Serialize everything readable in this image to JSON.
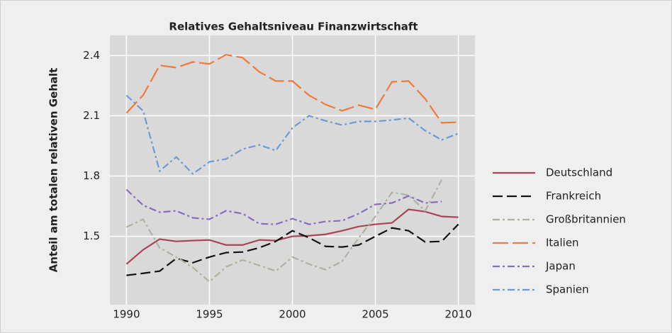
{
  "chart_data": {
    "type": "line",
    "title": "Relatives Gehaltsniveau Finanzwirtschaft",
    "y_label": "Anteil am totalen relativen Gehalt",
    "x": [
      1990,
      1991,
      1992,
      1993,
      1994,
      1995,
      1996,
      1997,
      1998,
      1999,
      2000,
      2001,
      2002,
      2003,
      2004,
      2005,
      2006,
      2007,
      2008,
      2009,
      2010
    ],
    "xlim": [
      1989,
      2011
    ],
    "xticks": [
      1990,
      1995,
      2000,
      2005,
      2010
    ],
    "ylim": [
      1.16,
      2.5
    ],
    "yticks": [
      1.5,
      1.8,
      2.1,
      2.4
    ],
    "grid": true,
    "legend": "right",
    "series": [
      {
        "name": "Deutschland",
        "color": "#a94456",
        "dash": "none",
        "values": [
          1.362,
          1.433,
          1.486,
          1.475,
          1.479,
          1.482,
          1.457,
          1.457,
          1.482,
          1.479,
          1.5,
          1.503,
          1.51,
          1.528,
          1.549,
          1.56,
          1.567,
          1.634,
          1.623,
          1.599,
          1.595
        ]
      },
      {
        "name": "Frankreich",
        "color": "#111111",
        "dash": "14 6",
        "values": [
          1.306,
          1.316,
          1.327,
          1.39,
          1.369,
          1.397,
          1.419,
          1.422,
          1.443,
          1.475,
          1.528,
          1.493,
          1.45,
          1.447,
          1.457,
          1.5,
          1.542,
          1.528,
          1.472,
          1.475,
          1.56
        ]
      },
      {
        "name": "Großbritannien",
        "color": "#a9b5a0",
        "dash": "10 4 3 4",
        "values": [
          1.546,
          1.585,
          1.443,
          1.397,
          1.345,
          1.274,
          1.348,
          1.383,
          1.355,
          1.327,
          1.397,
          1.362,
          1.334,
          1.376,
          1.493,
          1.599,
          1.719,
          1.705,
          1.627,
          1.782,
          null
        ]
      },
      {
        "name": "Italien",
        "color": "#ef7a3a",
        "dash": "22 6",
        "values": [
          2.114,
          2.202,
          2.351,
          2.34,
          2.368,
          2.358,
          2.404,
          2.389,
          2.319,
          2.273,
          2.273,
          2.202,
          2.156,
          2.125,
          2.153,
          2.132,
          2.269,
          2.273,
          2.185,
          2.065,
          2.068
        ]
      },
      {
        "name": "Japan",
        "color": "#8a6bbd",
        "dash": "10 4 3 4",
        "values": [
          1.733,
          1.655,
          1.62,
          1.627,
          1.592,
          1.585,
          1.627,
          1.613,
          1.563,
          1.56,
          1.588,
          1.56,
          1.574,
          1.578,
          1.613,
          1.659,
          1.666,
          1.701,
          1.666,
          1.673,
          null
        ]
      },
      {
        "name": "Spanien",
        "color": "#6a9bd6",
        "dash": "10 4 3 4",
        "values": [
          2.202,
          2.125,
          1.825,
          1.895,
          1.811,
          1.871,
          1.885,
          1.934,
          1.955,
          1.927,
          2.04,
          2.1,
          2.075,
          2.054,
          2.072,
          2.072,
          2.079,
          2.089,
          2.026,
          1.98,
          2.012
        ]
      }
    ]
  }
}
